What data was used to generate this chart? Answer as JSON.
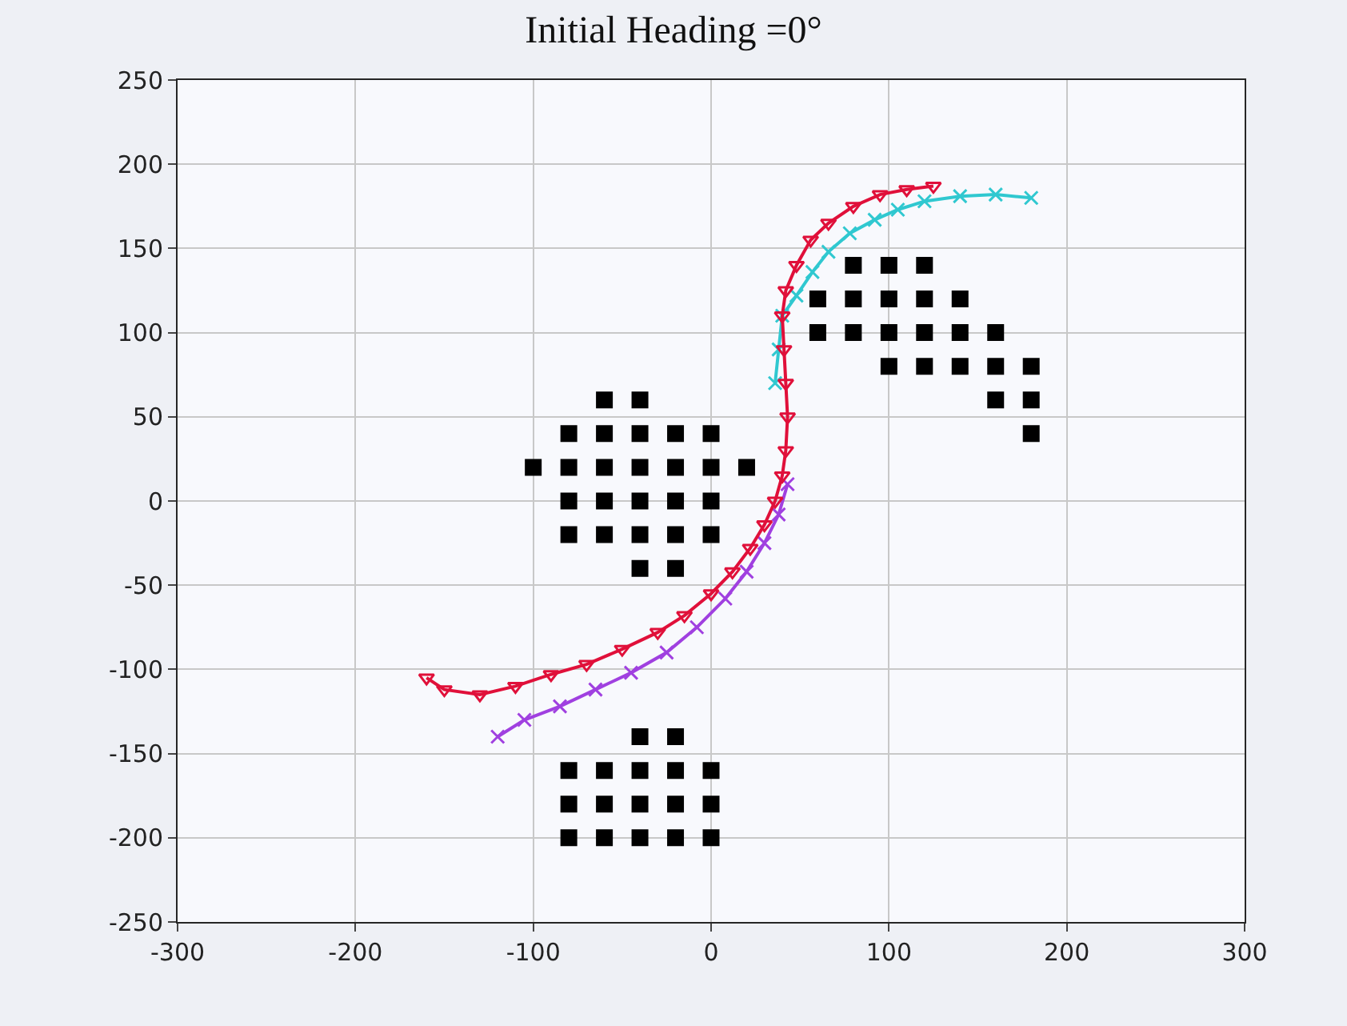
{
  "chart_data": {
    "type": "scatter",
    "title": "Initial Heading =0°",
    "xlim": [
      -300,
      300
    ],
    "xticks": [
      -300,
      -200,
      -100,
      0,
      100,
      200,
      300
    ],
    "ylim": [
      -250,
      250
    ],
    "yticks": [
      -250,
      -200,
      -150,
      -100,
      -50,
      0,
      50,
      100,
      150,
      200,
      250
    ],
    "grid": true,
    "series": [
      {
        "color": "#000000",
        "marker": "square",
        "x": [
          -60,
          -40,
          -80,
          -60,
          -40,
          -20,
          0,
          -100,
          -80,
          -60,
          -40,
          -20,
          0,
          20,
          -80,
          -60,
          -40,
          -20,
          0,
          -80,
          -60,
          -40,
          -20,
          0,
          -40,
          -20,
          -40,
          -20,
          -80,
          -60,
          -40,
          -20,
          0,
          -80,
          -60,
          -40,
          -20,
          0,
          -80,
          -60,
          -40,
          -20,
          0,
          80,
          100,
          120,
          60,
          80,
          100,
          120,
          140,
          60,
          80,
          100,
          120,
          140,
          160,
          100,
          120,
          140,
          160,
          180,
          160,
          180,
          180
        ],
        "values": [
          60,
          60,
          40,
          40,
          40,
          40,
          40,
          20,
          20,
          20,
          20,
          20,
          20,
          20,
          0,
          0,
          0,
          0,
          0,
          -20,
          -20,
          -20,
          -20,
          -20,
          -40,
          -40,
          -140,
          -140,
          -160,
          -160,
          -160,
          -160,
          -160,
          -180,
          -180,
          -180,
          -180,
          -180,
          -200,
          -200,
          -200,
          -200,
          -200,
          140,
          140,
          140,
          120,
          120,
          120,
          120,
          120,
          100,
          100,
          100,
          100,
          100,
          100,
          80,
          80,
          80,
          80,
          80,
          60,
          60,
          40
        ]
      },
      {
        "color": "#30c8d0",
        "marker": "cross",
        "type": "line",
        "x": [
          36,
          38,
          40,
          48,
          57,
          66,
          78,
          92,
          105,
          120,
          140,
          160,
          180
        ],
        "values": [
          70,
          90,
          110,
          122,
          136,
          148,
          159,
          167,
          173,
          178,
          181,
          182,
          180
        ]
      },
      {
        "color": "#a040e0",
        "marker": "cross",
        "type": "line",
        "x": [
          -120,
          -105,
          -85,
          -65,
          -45,
          -25,
          -8,
          8,
          20,
          30,
          38,
          43
        ],
        "values": [
          -140,
          -130,
          -122,
          -112,
          -102,
          -90,
          -75,
          -58,
          -42,
          -25,
          -8,
          10
        ]
      },
      {
        "color": "#e0103a",
        "marker": "triangle",
        "type": "line",
        "x": [
          -160,
          -150,
          -130,
          -110,
          -90,
          -70,
          -50,
          -30,
          -15,
          0,
          12,
          22,
          30,
          36,
          40,
          42,
          43,
          42,
          41,
          40,
          42,
          48,
          56,
          66,
          80,
          95,
          110,
          125
        ],
        "values": [
          -105,
          -112,
          -115,
          -110,
          -103,
          -97,
          -88,
          -78,
          -68,
          -55,
          -42,
          -28,
          -14,
          0,
          15,
          30,
          50,
          70,
          90,
          110,
          125,
          140,
          155,
          165,
          175,
          182,
          185,
          187
        ]
      }
    ]
  }
}
